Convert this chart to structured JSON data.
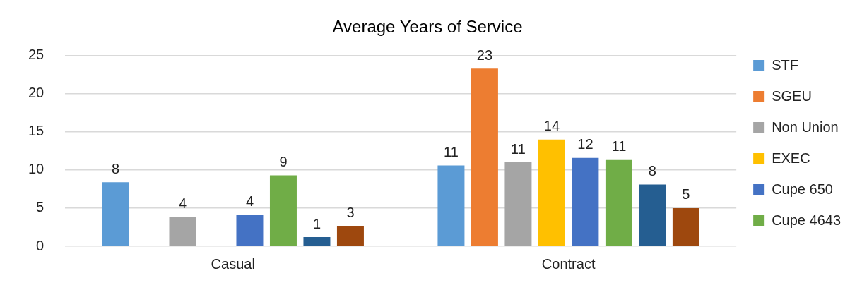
{
  "chart_data": {
    "type": "bar",
    "title": "Average Years of Service",
    "categories": [
      "Casual",
      "Contract"
    ],
    "series": [
      {
        "name": "STF",
        "color": "#5b9bd5",
        "values": [
          8.4,
          10.6
        ],
        "value_labels": [
          "8",
          "11"
        ]
      },
      {
        "name": "SGEU",
        "color": "#ed7d31",
        "values": [
          null,
          23.3
        ],
        "value_labels": [
          null,
          "23"
        ]
      },
      {
        "name": "Non Union",
        "color": "#a5a5a5",
        "values": [
          3.8,
          11.0
        ],
        "value_labels": [
          "4",
          "11"
        ]
      },
      {
        "name": "EXEC",
        "color": "#ffc000",
        "values": [
          null,
          14.0
        ],
        "value_labels": [
          null,
          "14"
        ]
      },
      {
        "name": "Cupe 650",
        "color": "#4472c4",
        "values": [
          4.1,
          11.6
        ],
        "value_labels": [
          "4",
          "12"
        ]
      },
      {
        "name": "Cupe 4643",
        "color": "#70ad47",
        "values": [
          9.3,
          11.3
        ],
        "value_labels": [
          "9",
          "11"
        ]
      },
      {
        "color": "#255e91",
        "values": [
          1.2,
          8.1
        ],
        "value_labels": [
          "1",
          "8"
        ]
      },
      {
        "color": "#9e480e",
        "values": [
          2.6,
          5.0
        ],
        "value_labels": [
          "3",
          "5"
        ]
      }
    ],
    "ylim": [
      0,
      25
    ],
    "yticks": [
      0,
      5,
      10,
      15,
      20,
      25
    ],
    "grid": "y",
    "legend": "right"
  }
}
